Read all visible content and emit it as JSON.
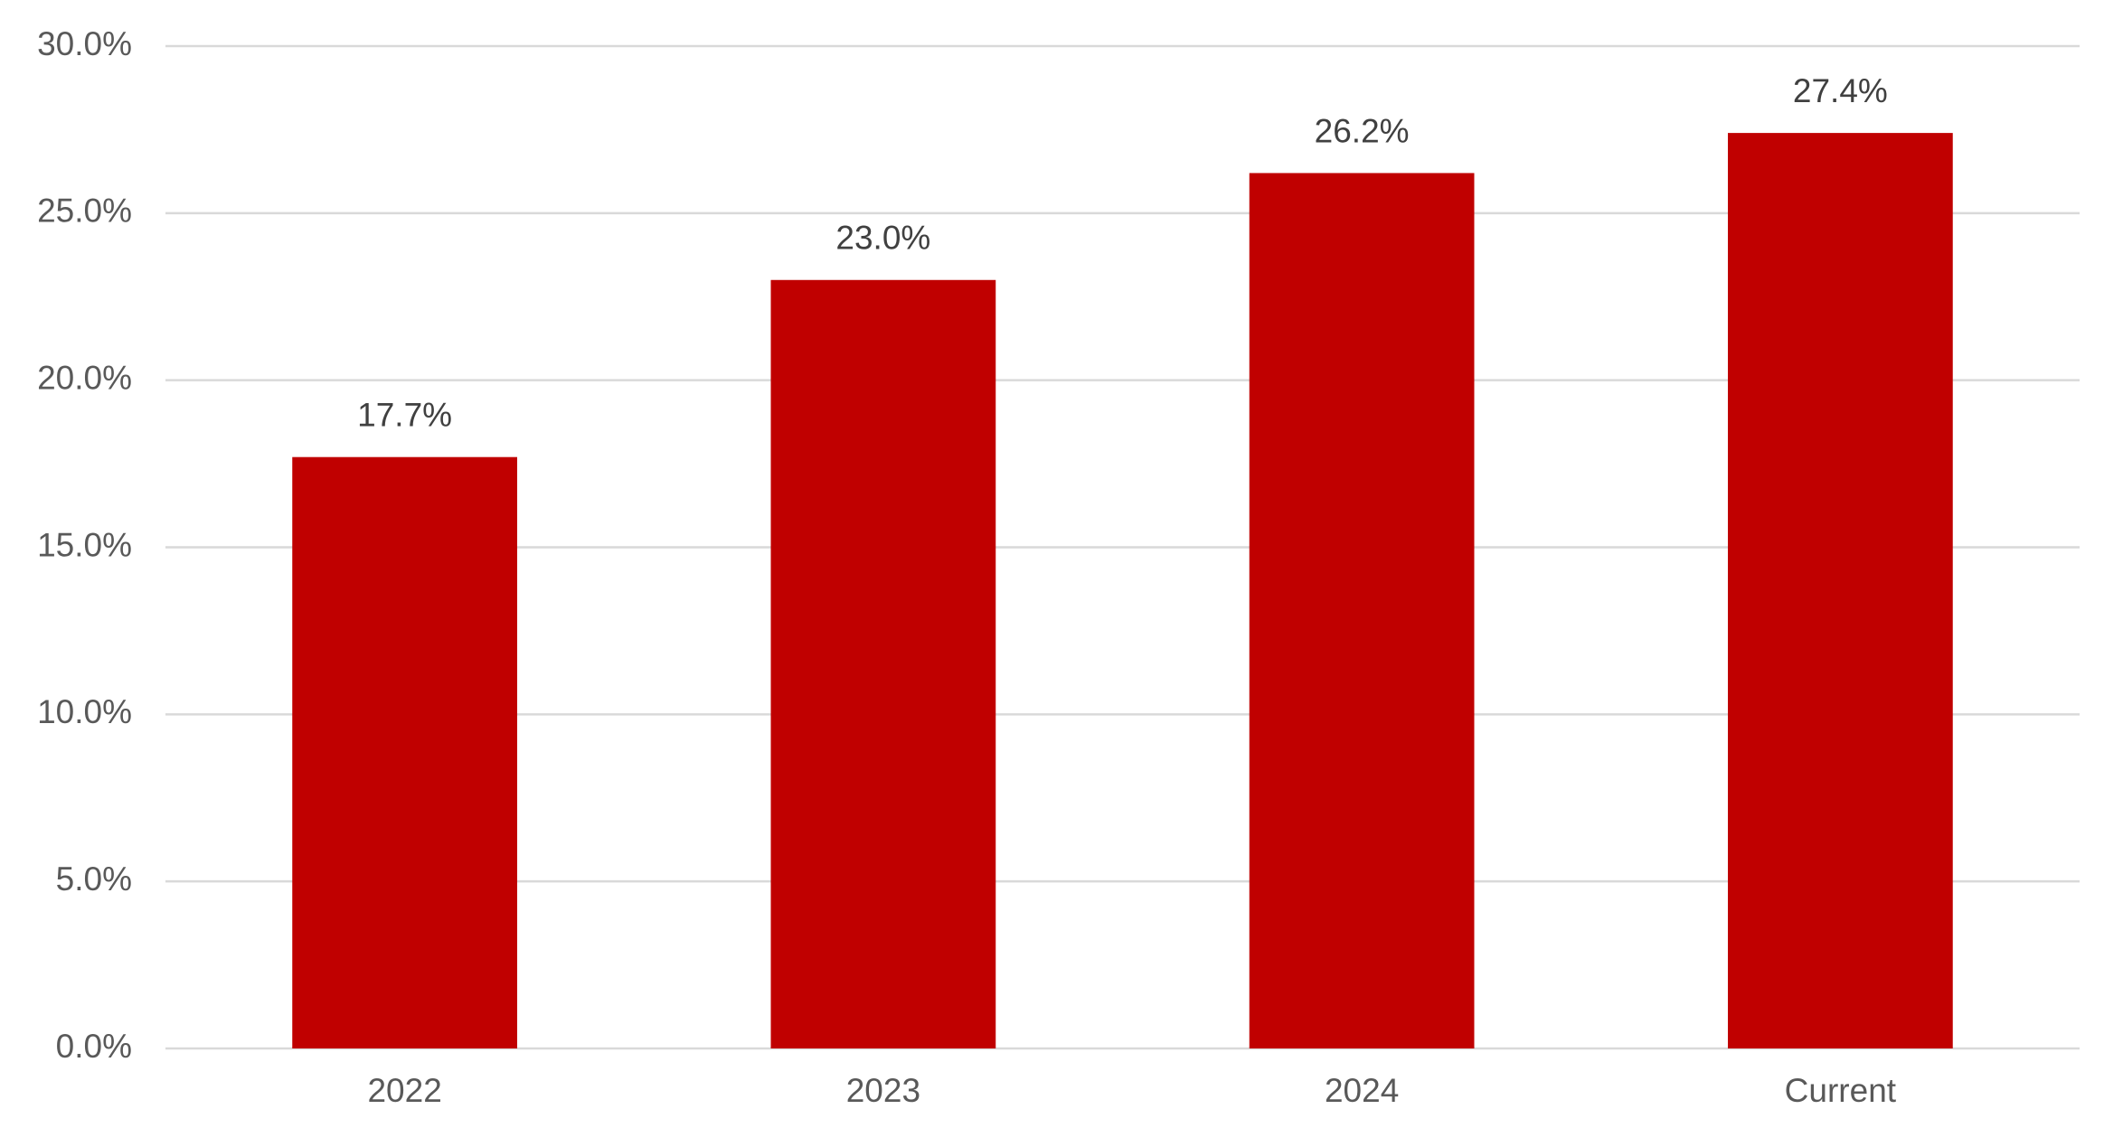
{
  "chart_data": {
    "type": "bar",
    "categories": [
      "2022",
      "2023",
      "2024",
      "Current"
    ],
    "values": [
      17.7,
      23.0,
      26.2,
      27.4
    ],
    "value_labels": [
      "17.7%",
      "23.0%",
      "26.2%",
      "27.4%"
    ],
    "color": "#c00000",
    "ylim": [
      0,
      30
    ],
    "yticks": [
      {
        "value": 0,
        "label": "0.0%"
      },
      {
        "value": 5,
        "label": "5.0%"
      },
      {
        "value": 10,
        "label": "10.0%"
      },
      {
        "value": 15,
        "label": "15.0%"
      },
      {
        "value": 20,
        "label": "20.0%"
      },
      {
        "value": 25,
        "label": "25.0%"
      },
      {
        "value": 30,
        "label": "30.0%"
      }
    ],
    "grid": true
  }
}
